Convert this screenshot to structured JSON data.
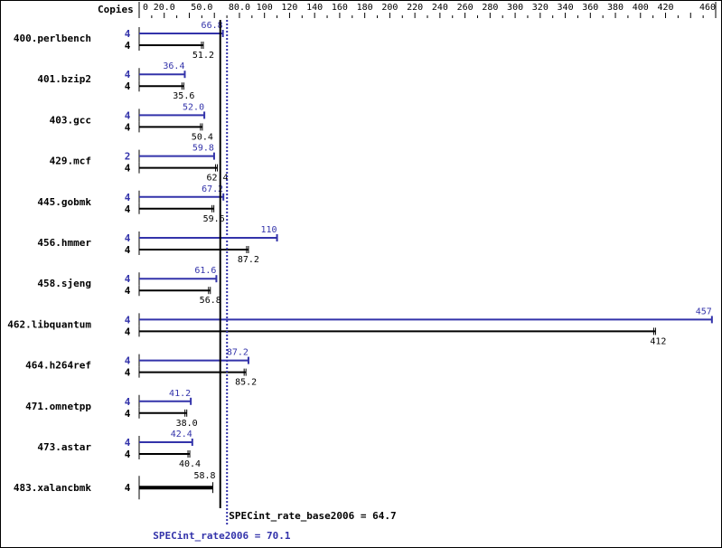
{
  "chart_data": {
    "type": "bar",
    "orientation": "horizontal",
    "xaxis_label": "Copies",
    "ticks": [
      0,
      20,
      50,
      80,
      100,
      120,
      140,
      160,
      180,
      200,
      220,
      240,
      260,
      280,
      300,
      320,
      340,
      360,
      380,
      400,
      420,
      460
    ],
    "tick_labels": [
      "0",
      "20.0",
      "50.0",
      "80.0",
      "100",
      "120",
      "140",
      "160",
      "180",
      "200",
      "220",
      "240",
      "260",
      "280",
      "300",
      "320",
      "340",
      "360",
      "380",
      "400",
      "420",
      "460"
    ],
    "xlim": [
      0,
      460
    ],
    "categories": [
      "400.perlbench",
      "401.bzip2",
      "403.gcc",
      "429.mcf",
      "445.gobmk",
      "456.hmmer",
      "458.sjeng",
      "462.libquantum",
      "464.h264ref",
      "471.omnetpp",
      "473.astar",
      "483.xalancbmk"
    ],
    "series": [
      {
        "name": "peak",
        "color": "#3333aa",
        "copies": [
          4,
          4,
          4,
          2,
          4,
          4,
          4,
          4,
          4,
          4,
          4,
          null
        ],
        "values": [
          66.8,
          36.4,
          52.0,
          59.8,
          67.2,
          110,
          61.6,
          457,
          87.2,
          41.2,
          42.4,
          null
        ],
        "labels": [
          "66.8",
          "36.4",
          "52.0",
          "59.8",
          "67.2",
          "110",
          "61.6",
          "457",
          "87.2",
          "41.2",
          "42.4",
          ""
        ]
      },
      {
        "name": "base",
        "color": "#000000",
        "copies": [
          4,
          4,
          4,
          4,
          4,
          4,
          4,
          4,
          4,
          4,
          4,
          4
        ],
        "values": [
          51.2,
          35.6,
          50.4,
          62.4,
          59.6,
          87.2,
          56.8,
          412,
          85.2,
          38.0,
          40.4,
          58.8
        ],
        "labels": [
          "51.2",
          "35.6",
          "50.4",
          "62.4",
          "59.6",
          "87.2",
          "56.8",
          "412",
          "85.2",
          "38.0",
          "40.4",
          "58.8"
        ]
      }
    ],
    "base_mean": {
      "value": 64.7,
      "label": "SPECint_rate_base2006 = 64.7"
    },
    "peak_mean": {
      "value": 70.1,
      "label": "SPECint_rate2006 = 70.1"
    }
  }
}
